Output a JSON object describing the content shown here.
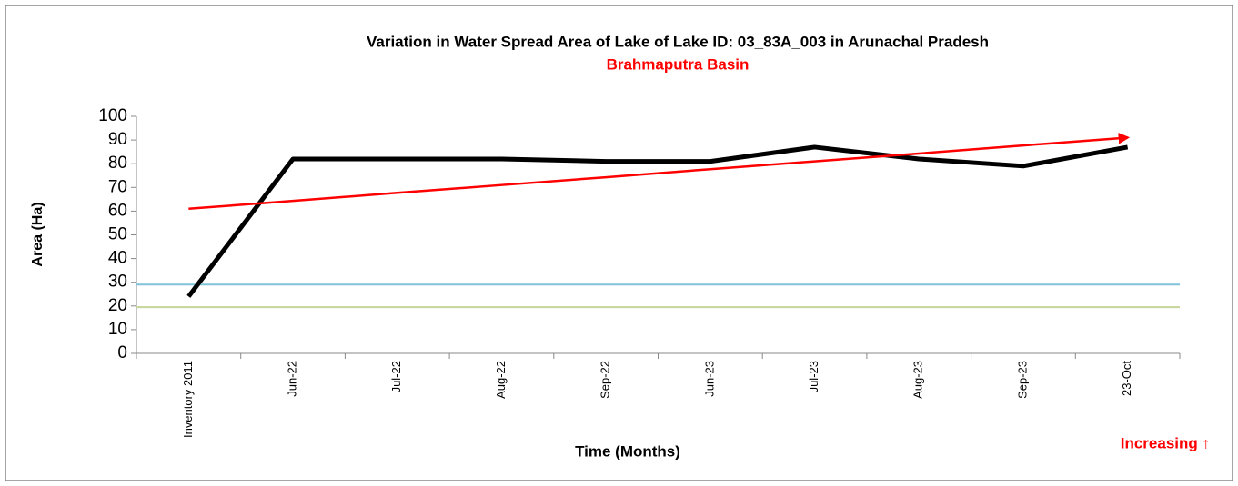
{
  "chart_data": {
    "type": "line",
    "title": "Variation in Water Spread Area of Lake of Lake ID: 03_83A_003 in Arunachal Pradesh",
    "subtitle": "Brahmaputra Basin",
    "y_label": "Area (Ha)",
    "x_label": "Time (Months)",
    "annotation": "Increasing ↑",
    "categories": [
      "Inventory 2011",
      "Jun-22",
      "Jul-22",
      "Aug-22",
      "Sep-22",
      "Jun-23",
      "Jul-23",
      "Aug-23",
      "Sep-23",
      "23-Oct"
    ],
    "series": [
      {
        "color": "#000000",
        "values": [
          24,
          82,
          82,
          82,
          81,
          81,
          87,
          82,
          79,
          87
        ]
      },
      {
        "color": "#ff0000",
        "values": [
          61,
          64.3,
          67.7,
          71,
          74.3,
          77.7,
          81,
          84.3,
          87.7,
          91
        ]
      }
    ],
    "reference_lines": [
      {
        "value": 29,
        "color": "#7fc4d8"
      },
      {
        "value": 19.5,
        "color": "#c4d49a"
      }
    ],
    "ylim": [
      0,
      100
    ],
    "yticks": [
      0,
      10,
      20,
      30,
      40,
      50,
      60,
      70,
      80,
      90,
      100
    ],
    "grid": false
  }
}
